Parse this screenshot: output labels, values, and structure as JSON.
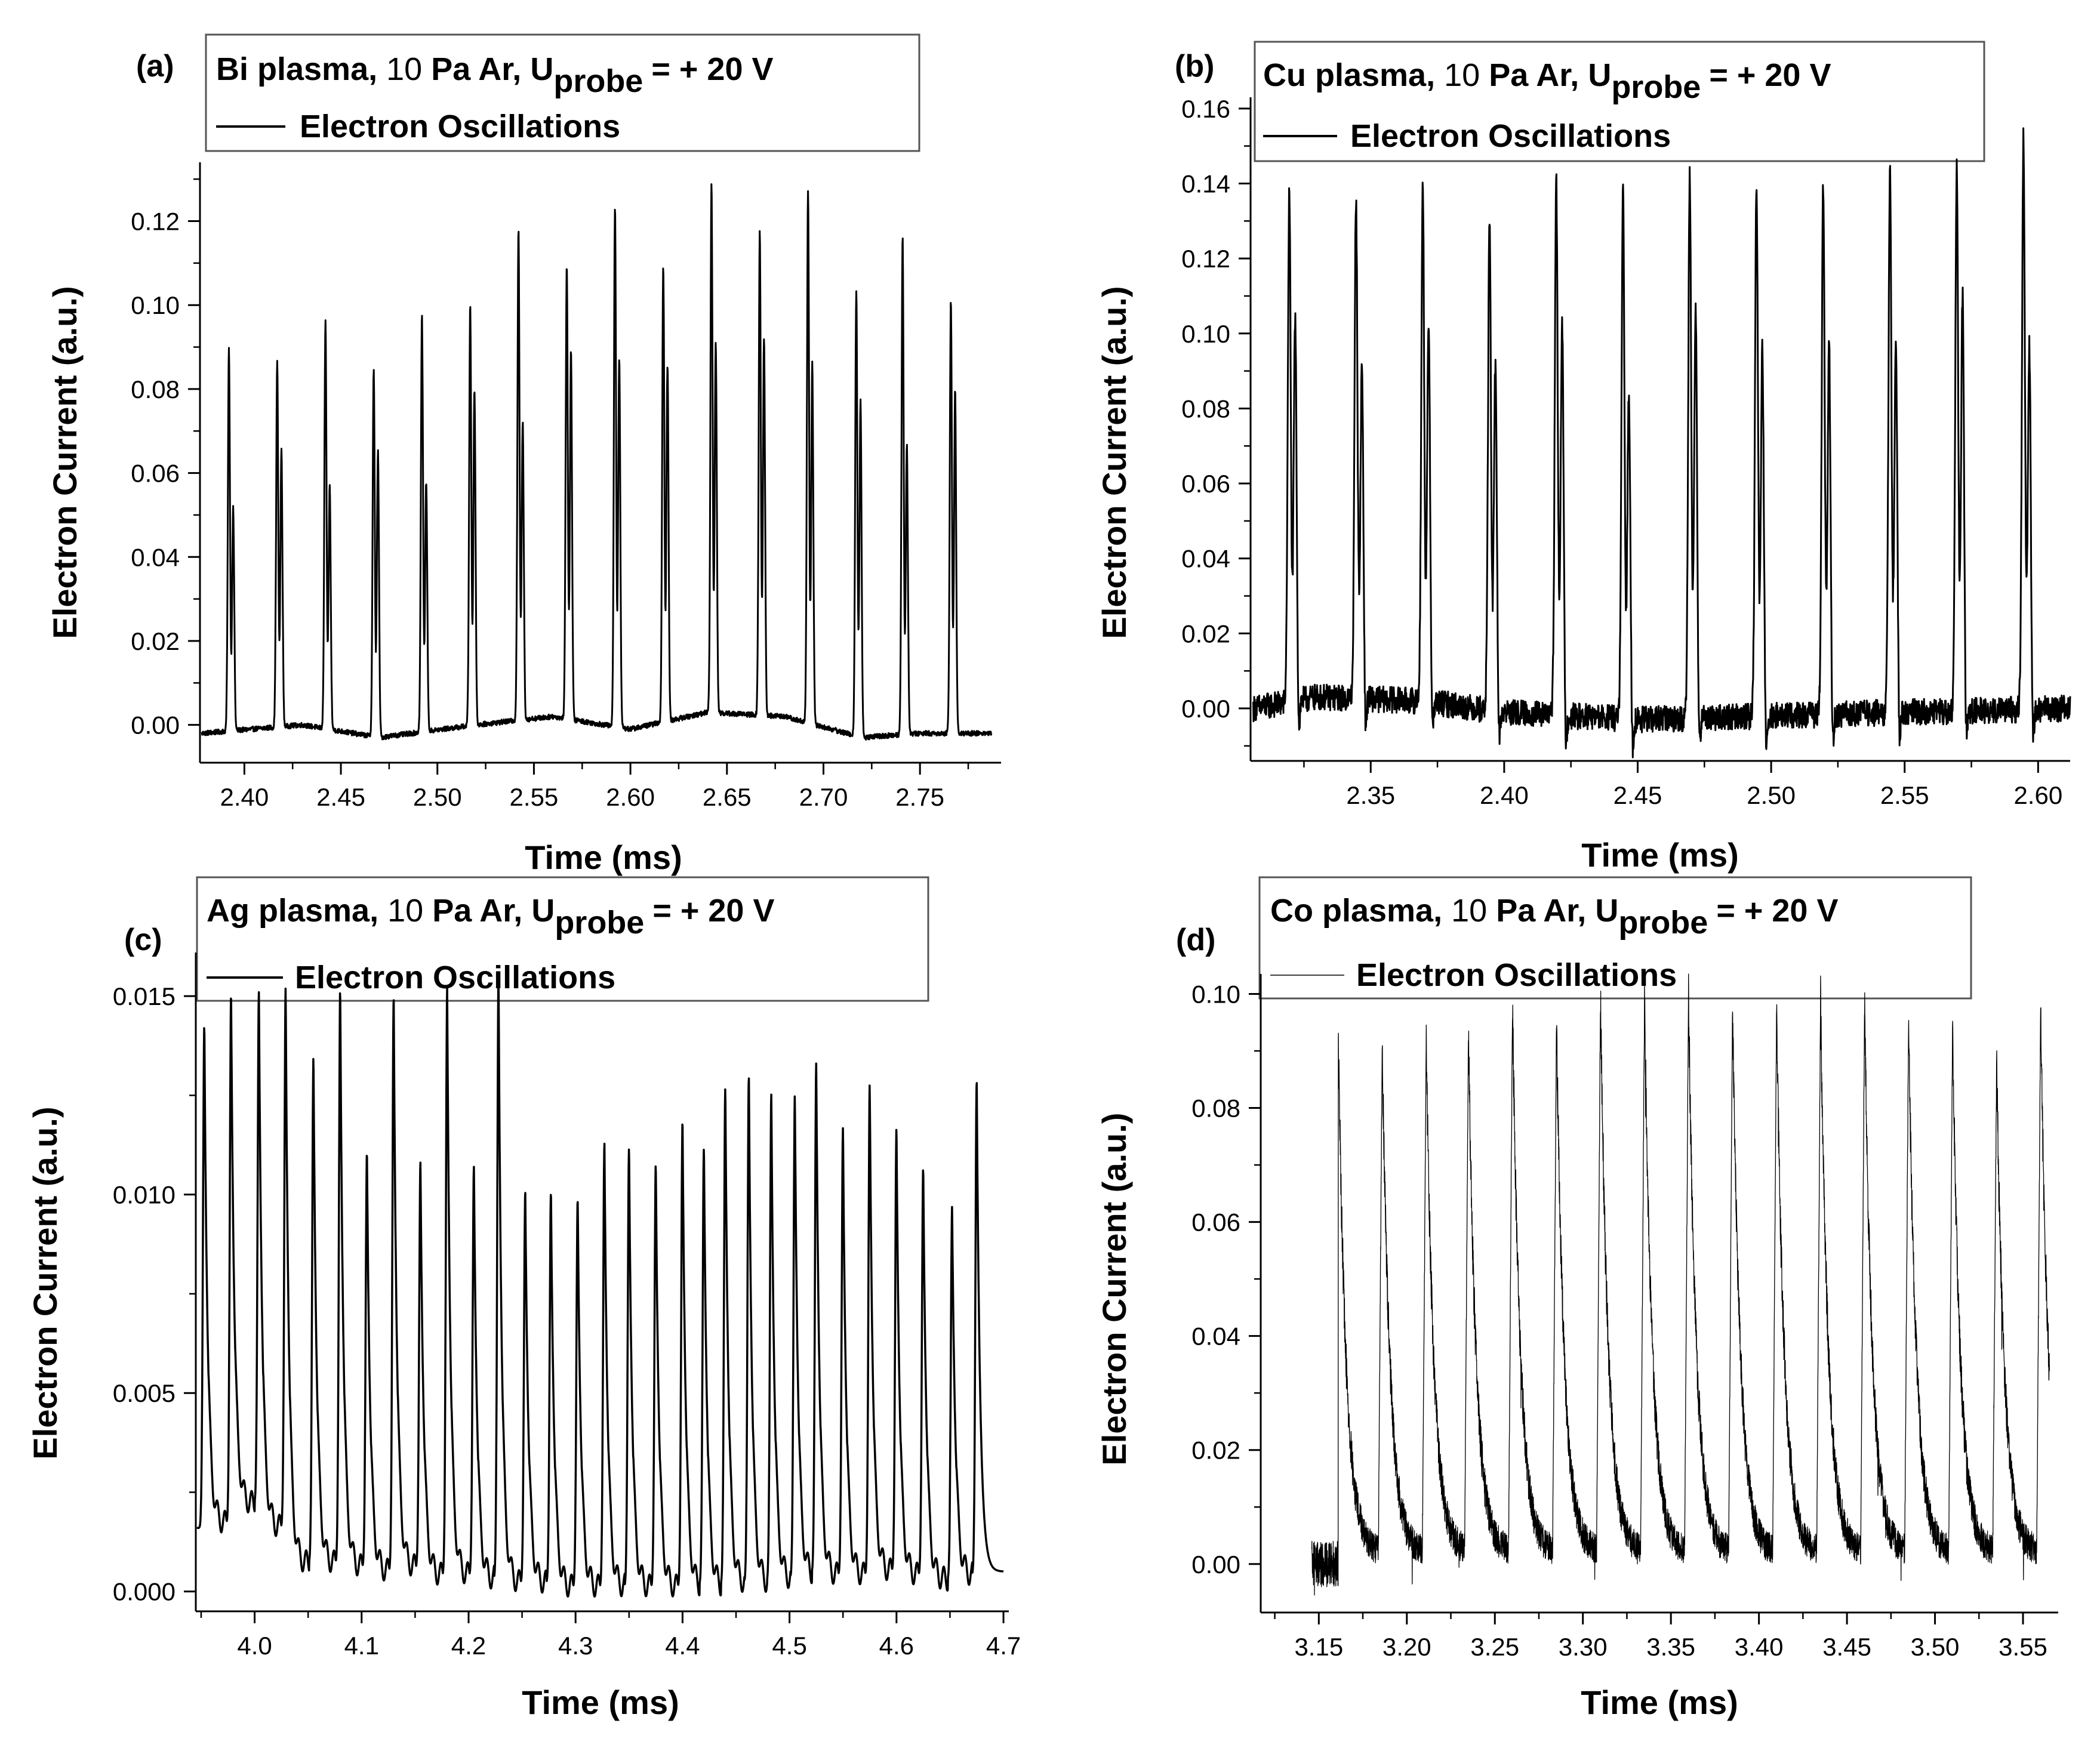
{
  "chart_data": [
    {
      "id": "a",
      "type": "line",
      "panel_label": "(a)",
      "title_prefix": "Bi plasma,",
      "pressure": "10",
      "title_mid": "Pa Ar,",
      "title_u": "U",
      "title_sub": "probe",
      "title_suffix": "= + 20 V",
      "legend": "Electron Oscillations",
      "xlabel": "Time (ms)",
      "ylabel": "Electron Current (a.u.)",
      "xlim": [
        2.377,
        2.792
      ],
      "ylim": [
        -0.009,
        0.134
      ],
      "xticks": [
        "2.40",
        "2.45",
        "2.50",
        "2.55",
        "2.60",
        "2.65",
        "2.70",
        "2.75"
      ],
      "yticks": [
        "0.00",
        "0.02",
        "0.04",
        "0.06",
        "0.08",
        "0.10",
        "0.12"
      ],
      "series": [
        {
          "name": "Electron Oscillations",
          "x_start": 2.378,
          "x_end": 2.787,
          "baseline": [
            [
              2.378,
              -0.002
            ],
            [
              2.43,
              0.0
            ],
            [
              2.47,
              -0.003
            ],
            [
              2.52,
              0.0
            ],
            [
              2.56,
              0.002
            ],
            [
              2.6,
              -0.001
            ],
            [
              2.64,
              0.003
            ],
            [
              2.68,
              0.002
            ],
            [
              2.72,
              -0.003
            ],
            [
              2.75,
              -0.002
            ],
            [
              2.787,
              -0.002
            ]
          ],
          "spikes": [
            [
              2.392,
              0.093,
              0.055
            ],
            [
              2.417,
              0.089,
              0.068
            ],
            [
              2.442,
              0.099,
              0.06
            ],
            [
              2.467,
              0.089,
              0.07
            ],
            [
              2.492,
              0.101,
              0.061
            ],
            [
              2.517,
              0.102,
              0.082
            ],
            [
              2.542,
              0.119,
              0.073
            ],
            [
              2.567,
              0.11,
              0.09
            ],
            [
              2.592,
              0.126,
              0.09
            ],
            [
              2.617,
              0.111,
              0.087
            ],
            [
              2.642,
              0.128,
              0.09
            ],
            [
              2.667,
              0.117,
              0.092
            ],
            [
              2.692,
              0.129,
              0.088
            ],
            [
              2.717,
              0.108,
              0.082
            ],
            [
              2.741,
              0.121,
              0.071
            ],
            [
              2.766,
              0.105,
              0.084
            ]
          ],
          "noise": 0.0006,
          "line_width": 3
        }
      ]
    },
    {
      "id": "b",
      "type": "line",
      "panel_label": "(b)",
      "title_prefix": "Cu plasma,",
      "pressure": "10",
      "title_mid": "Pa Ar,",
      "title_u": "U",
      "title_sub": "probe",
      "title_suffix": "= + 20 V",
      "legend": "Electron Oscillations",
      "xlabel": "Time (ms)",
      "ylabel": "Electron Current (a.u.)",
      "xlim": [
        2.305,
        2.612
      ],
      "ylim": [
        -0.014,
        0.163
      ],
      "xticks": [
        "2.35",
        "2.40",
        "2.45",
        "2.50",
        "2.55",
        "2.60"
      ],
      "yticks": [
        "0.00",
        "0.02",
        "0.04",
        "0.06",
        "0.08",
        "0.10",
        "0.12",
        "0.14",
        "0.16"
      ],
      "series": [
        {
          "name": "Electron Oscillations",
          "x_start": 2.306,
          "x_end": 2.612,
          "baseline": [
            [
              2.306,
              0.0
            ],
            [
              2.33,
              0.003
            ],
            [
              2.37,
              0.002
            ],
            [
              2.4,
              -0.001
            ],
            [
              2.45,
              -0.003
            ],
            [
              2.5,
              -0.002
            ],
            [
              2.55,
              -0.001
            ],
            [
              2.612,
              0.0
            ]
          ],
          "spikes": [
            [
              2.3195,
              0.138,
              0.104
            ],
            [
              2.3445,
              0.136,
              0.091
            ],
            [
              2.3695,
              0.139,
              0.104
            ],
            [
              2.3945,
              0.133,
              0.094
            ],
            [
              2.4195,
              0.144,
              0.107
            ],
            [
              2.4445,
              0.142,
              0.09
            ],
            [
              2.4695,
              0.147,
              0.111
            ],
            [
              2.4945,
              0.146,
              0.1
            ],
            [
              2.5195,
              0.144,
              0.1
            ],
            [
              2.5445,
              0.146,
              0.101
            ],
            [
              2.5695,
              0.147,
              0.112
            ],
            [
              2.5945,
              0.154,
              0.099
            ]
          ],
          "noise": 0.0035,
          "dip": -0.01,
          "line_width": 3
        }
      ]
    },
    {
      "id": "c",
      "type": "line",
      "panel_label": "(c)",
      "title_prefix": "Ag plasma,",
      "pressure": "10",
      "title_mid": "Pa Ar,",
      "title_u": "U",
      "title_sub": "probe",
      "title_suffix": "= + 20 V",
      "legend": "Electron Oscillations",
      "xlabel": "Time (ms)",
      "ylabel": "Electron Current (a.u.)",
      "xlim": [
        3.945,
        4.705
      ],
      "ylim": [
        -0.0005,
        0.0161
      ],
      "xticks": [
        "4.0",
        "4.1",
        "4.2",
        "4.3",
        "4.4",
        "4.5",
        "4.6",
        "4.7"
      ],
      "yticks": [
        "0.000",
        "0.005",
        "0.010",
        "0.015"
      ],
      "series": [
        {
          "name": "Electron Oscillations",
          "x_start": 3.946,
          "x_end": 4.7,
          "peaks": [
            [
              3.953,
              0.0143
            ],
            [
              3.978,
              0.0151
            ],
            [
              4.004,
              0.0151
            ],
            [
              4.029,
              0.0152
            ],
            [
              4.055,
              0.0135
            ],
            [
              4.08,
              0.0152
            ],
            [
              4.105,
              0.0111
            ],
            [
              4.13,
              0.015
            ],
            [
              4.155,
              0.0108
            ],
            [
              4.18,
              0.0152
            ],
            [
              4.205,
              0.0107
            ],
            [
              4.228,
              0.0155
            ],
            [
              4.253,
              0.0101
            ],
            [
              4.277,
              0.0101
            ],
            [
              4.302,
              0.0099
            ],
            [
              4.327,
              0.0113
            ],
            [
              4.35,
              0.0112
            ],
            [
              4.375,
              0.0108
            ],
            [
              4.4,
              0.0119
            ],
            [
              4.42,
              0.0112
            ],
            [
              4.44,
              0.0127
            ],
            [
              4.462,
              0.013
            ],
            [
              4.483,
              0.0125
            ],
            [
              4.505,
              0.0125
            ],
            [
              4.525,
              0.0133
            ],
            [
              4.55,
              0.0117
            ],
            [
              4.575,
              0.0128
            ],
            [
              4.6,
              0.0117
            ],
            [
              4.625,
              0.0107
            ],
            [
              4.652,
              0.0097
            ],
            [
              4.675,
              0.0129
            ]
          ],
          "floors": [
            0.0017,
            0.0022,
            0.0016,
            0.0007,
            0.0007,
            0.0006,
            0.0005,
            0.0006,
            0.0004,
            0.0004,
            0.0003,
            0.0002,
            0.0002,
            0.0001,
            0.0001,
            0.0001,
            0.0001,
            0.0001,
            0.0001,
            0.0001,
            0.0002,
            0.0002,
            0.0003,
            0.0004,
            0.0004,
            0.0004,
            0.0005,
            0.0004,
            0.0003,
            0.0004,
            0.0005
          ],
          "line_width": 3.5
        }
      ]
    },
    {
      "id": "d",
      "type": "line",
      "panel_label": "(d)",
      "title_prefix": "Co plasma,",
      "pressure": "10",
      "title_mid": "Pa Ar,",
      "title_u": "U",
      "title_sub": "probe",
      "title_suffix": "= + 20 V",
      "legend": "Electron Oscillations",
      "xlabel": "Time (ms)",
      "ylabel": "Electron Current (a.u.)",
      "xlim": [
        3.117,
        3.57
      ],
      "ylim": [
        -0.0085,
        0.1035
      ],
      "xticks": [
        "3.15",
        "3.20",
        "3.25",
        "3.30",
        "3.35",
        "3.40",
        "3.45",
        "3.50",
        "3.55"
      ],
      "yticks": [
        "0.00",
        "0.02",
        "0.04",
        "0.06",
        "0.08",
        "0.10"
      ],
      "series": [
        {
          "name": "Electron Oscillations",
          "x_start": 3.146,
          "x_end": 3.565,
          "peaks": [
            [
              3.161,
              0.094
            ],
            [
              3.186,
              0.091
            ],
            [
              3.211,
              0.091
            ],
            [
              3.235,
              0.093
            ],
            [
              3.26,
              0.099
            ],
            [
              3.285,
              0.095
            ],
            [
              3.31,
              0.1
            ],
            [
              3.335,
              0.099
            ],
            [
              3.36,
              0.1
            ],
            [
              3.385,
              0.098
            ],
            [
              3.41,
              0.097
            ],
            [
              3.435,
              0.099
            ],
            [
              3.46,
              0.098
            ],
            [
              3.485,
              0.096
            ],
            [
              3.51,
              0.094
            ],
            [
              3.535,
              0.088
            ],
            [
              3.56,
              0.097
            ]
          ],
          "noise": 0.004,
          "line_width": 1.3
        }
      ]
    }
  ]
}
